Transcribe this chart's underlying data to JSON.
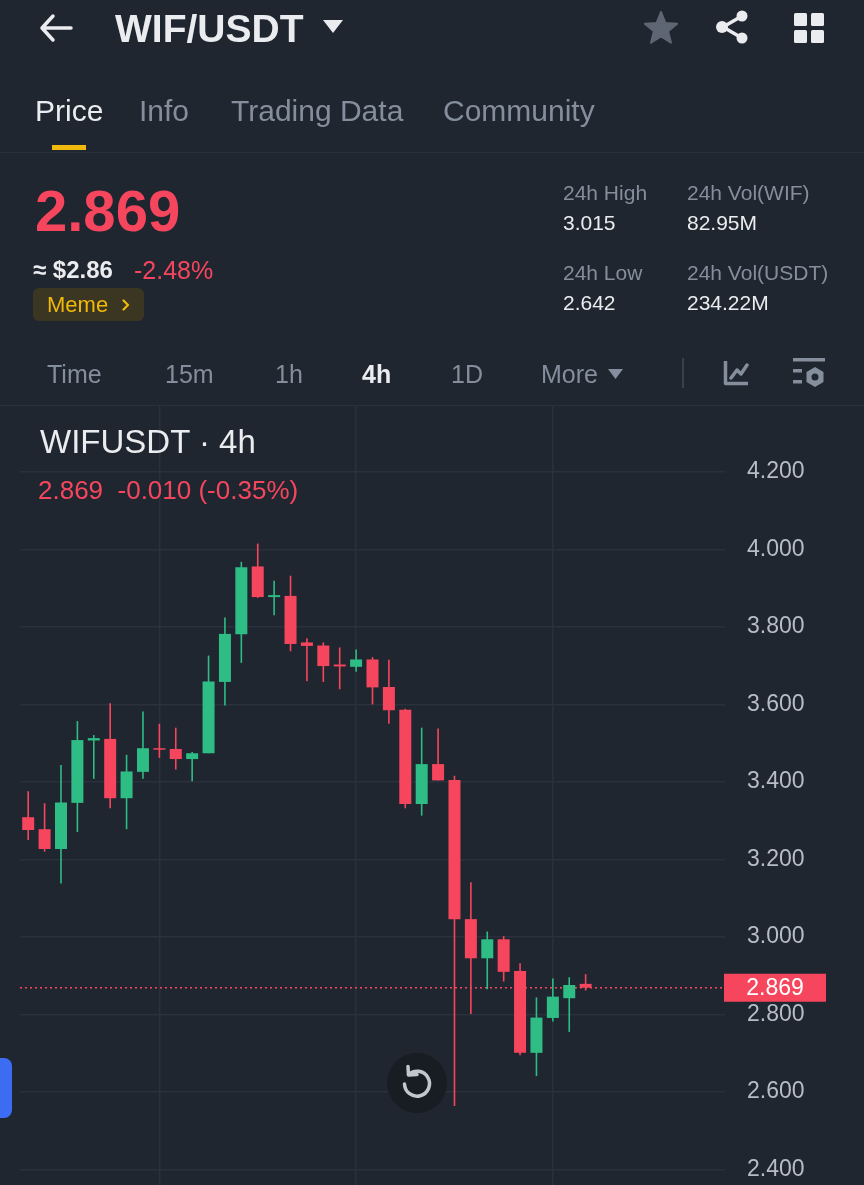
{
  "chart_data": [
    {
      "type": "other",
      "title": "WIF/USDT",
      "annotations": [
        "Price",
        "Info",
        "Trading Data",
        "Community",
        "2.869",
        "≈ $2.86",
        "-2.48%",
        "Meme",
        "24h High",
        "3.015",
        "24h Low",
        "2.642",
        "24h Vol(WIF)",
        "82.95M",
        "24h Vol(USDT)",
        "234.22M",
        "Time",
        "15m",
        "1h",
        "4h",
        "1D",
        "More"
      ]
    },
    {
      "type": "candlestick",
      "title": "WIFUSDT · 4h",
      "subtitle": "2.869  -0.010 (-0.35%)",
      "categories": [
        null,
        null,
        null,
        null,
        null,
        null,
        null,
        null,
        null,
        null,
        null,
        null,
        null,
        null,
        null,
        null,
        null,
        null,
        null,
        null,
        null,
        null,
        null,
        null,
        null,
        null,
        null,
        null,
        null,
        null,
        null,
        null,
        null,
        null,
        null,
        null,
        null,
        null,
        null,
        null,
        null,
        null,
        null
      ],
      "ohlc": [
        [
          3.309,
          3.376,
          3.25,
          3.276
        ],
        [
          3.278,
          3.345,
          3.22,
          3.227
        ],
        [
          3.227,
          3.444,
          3.138,
          3.347
        ],
        [
          3.346,
          3.557,
          3.271,
          3.508
        ],
        [
          3.507,
          3.521,
          3.408,
          3.513
        ],
        [
          3.511,
          3.603,
          3.332,
          3.358
        ],
        [
          3.358,
          3.47,
          3.278,
          3.427
        ],
        [
          3.426,
          3.582,
          3.408,
          3.487
        ],
        [
          3.487,
          3.55,
          3.462,
          3.484
        ],
        [
          3.485,
          3.54,
          3.432,
          3.459
        ],
        [
          3.459,
          3.477,
          3.402,
          3.474
        ],
        [
          3.474,
          3.726,
          3.474,
          3.659
        ],
        [
          3.658,
          3.824,
          3.597,
          3.782
        ],
        [
          3.781,
          3.968,
          3.707,
          3.954
        ],
        [
          3.956,
          4.015,
          3.875,
          3.877
        ],
        [
          3.877,
          3.919,
          3.83,
          3.882
        ],
        [
          3.88,
          3.932,
          3.737,
          3.756
        ],
        [
          3.76,
          3.771,
          3.66,
          3.751
        ],
        [
          3.752,
          3.76,
          3.658,
          3.699
        ],
        [
          3.703,
          3.747,
          3.639,
          3.698
        ],
        [
          3.697,
          3.742,
          3.684,
          3.716
        ],
        [
          3.716,
          3.722,
          3.6,
          3.644
        ],
        [
          3.645,
          3.715,
          3.55,
          3.585
        ],
        [
          3.586,
          3.589,
          3.332,
          3.343
        ],
        [
          3.343,
          3.54,
          3.313,
          3.446
        ],
        [
          3.446,
          3.538,
          3.404,
          3.404
        ],
        [
          3.405,
          3.416,
          2.564,
          3.046
        ],
        [
          3.046,
          3.141,
          2.801,
          2.945
        ],
        [
          2.945,
          3.014,
          2.865,
          2.994
        ],
        [
          2.994,
          3.002,
          2.885,
          2.91
        ],
        [
          2.912,
          2.932,
          2.695,
          2.701
        ],
        [
          2.701,
          2.844,
          2.641,
          2.792
        ],
        [
          2.791,
          2.893,
          2.782,
          2.846
        ],
        [
          2.842,
          2.896,
          2.755,
          2.876
        ],
        [
          2.879,
          2.904,
          2.862,
          2.869
        ],
        null,
        null,
        null,
        null,
        null,
        null,
        null,
        null
      ],
      "colors": [
        "#f6465d",
        "#f6465d",
        "#2ebd85",
        "#2ebd85",
        "#2ebd85",
        "#f6465d",
        "#2ebd85",
        "#2ebd85",
        "#f6465d",
        "#f6465d",
        "#2ebd85",
        "#2ebd85",
        "#2ebd85",
        "#2ebd85",
        "#f6465d",
        "#2ebd85",
        "#f6465d",
        "#f6465d",
        "#f6465d",
        "#f6465d",
        "#2ebd85",
        "#f6465d",
        "#f6465d",
        "#f6465d",
        "#2ebd85",
        "#f6465d",
        "#f6465d",
        "#f6465d",
        "#2ebd85",
        "#f6465d",
        "#f6465d",
        "#2ebd85",
        "#2ebd85",
        "#2ebd85",
        "#f6465d",
        null,
        null,
        null,
        null,
        null,
        null,
        null,
        null
      ],
      "ylim": [
        2.36,
        4.37
      ],
      "yticks": [
        {
          "value": 2.4,
          "label": "2.400"
        },
        {
          "value": 2.6,
          "label": "2.600"
        },
        {
          "value": 2.8,
          "label": "2.800"
        },
        {
          "value": 3.0,
          "label": "3.000"
        },
        {
          "value": 3.2,
          "label": "3.200"
        },
        {
          "value": 3.4,
          "label": "3.400"
        },
        {
          "value": 3.6,
          "label": "3.600"
        },
        {
          "value": 3.8,
          "label": "3.800"
        },
        {
          "value": 4.0,
          "label": "4.000"
        },
        {
          "value": 4.2,
          "label": "4.200"
        }
      ],
      "grid": true,
      "tick_labels": "y",
      "ref_lines": [
        {
          "axis": "y",
          "value": 2.869,
          "label": "2.869",
          "color": "#f6465d",
          "line_style": "dotted"
        }
      ]
    }
  ]
}
